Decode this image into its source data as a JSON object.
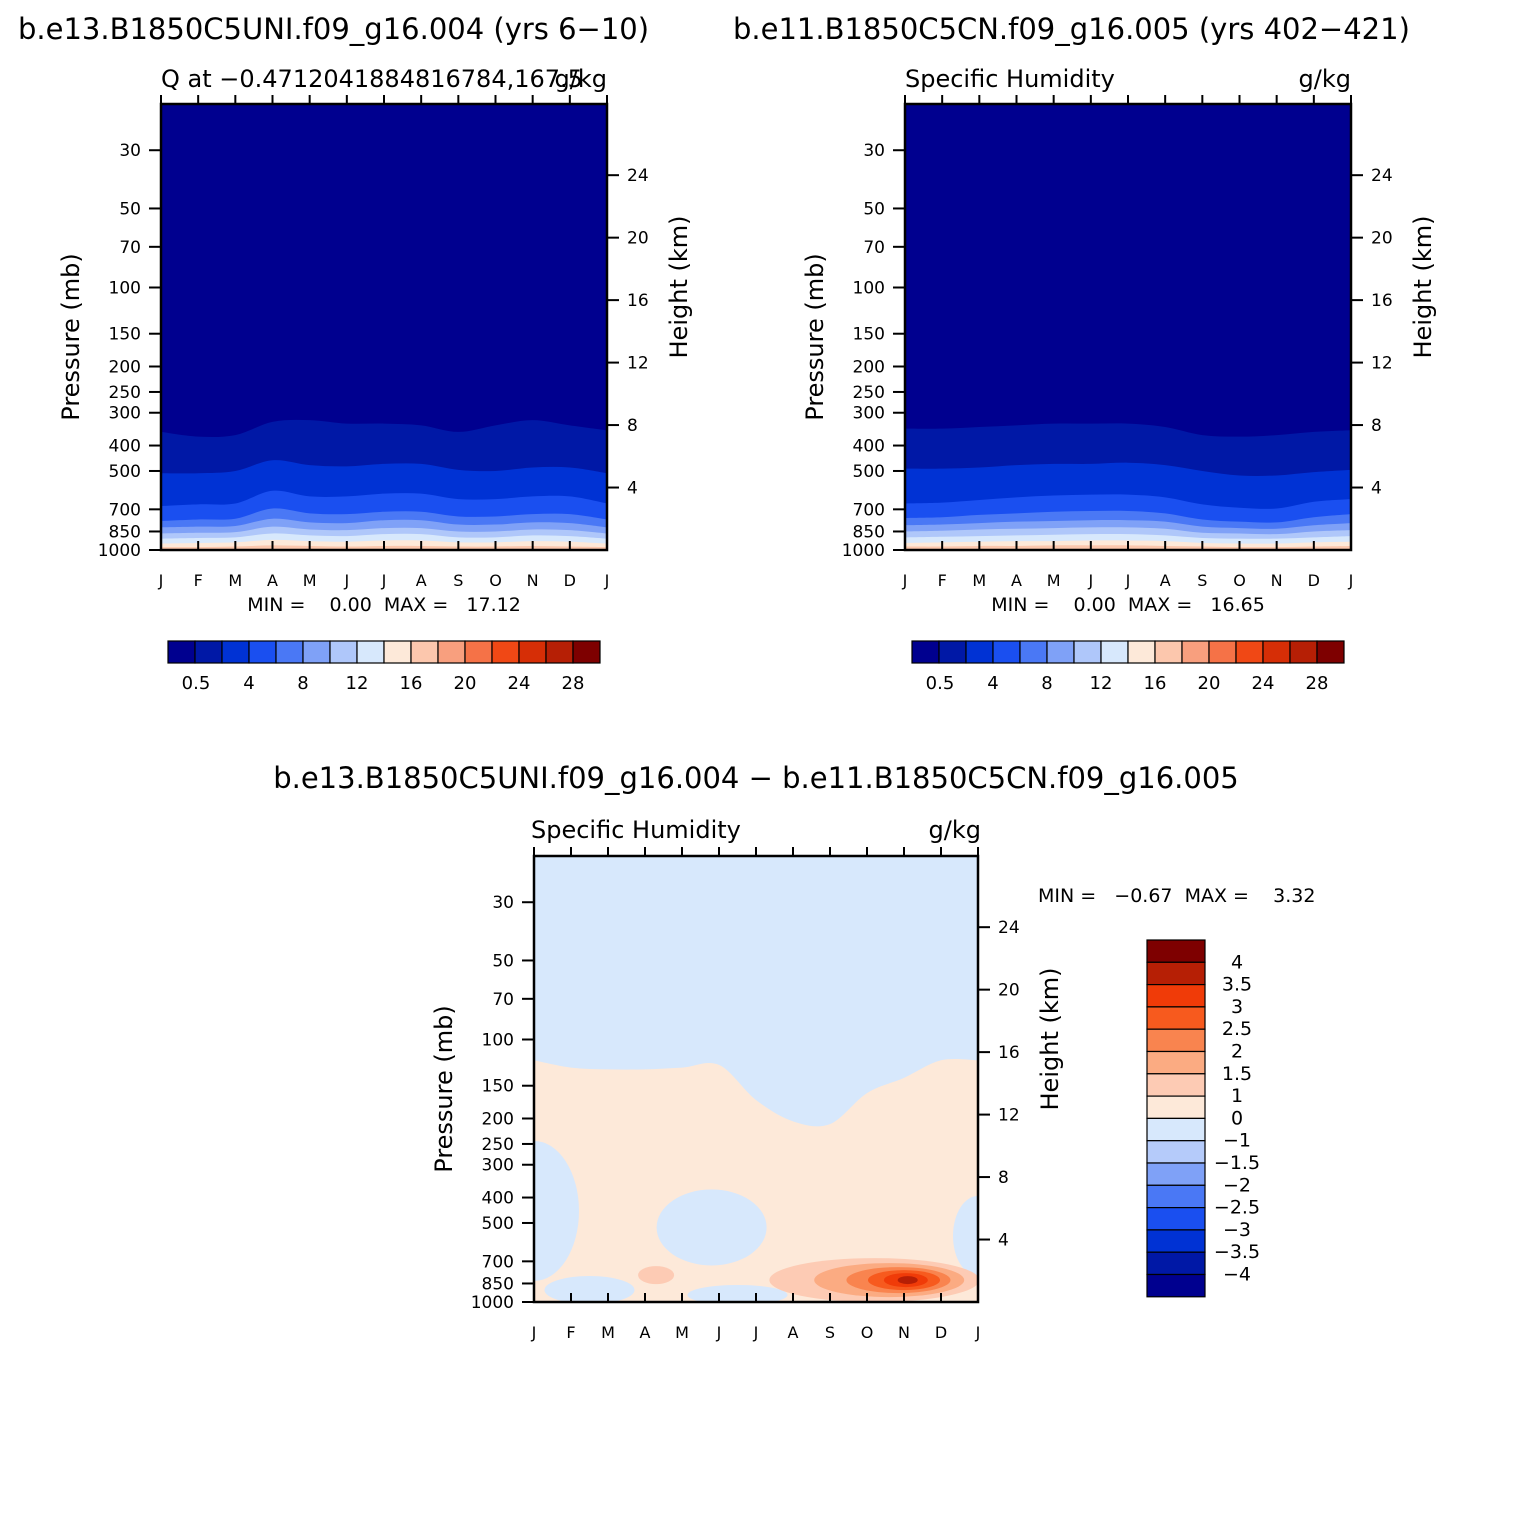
{
  "panels": [
    {
      "id": "p1",
      "run_title": "b.e13.B1850C5UNI.f09_g16.004 (yrs 6−10)",
      "left_title": "Q at −0.4712041884816784,167.5",
      "right_title": "g/kg",
      "min_max_text": "MIN =    0.00  MAX =   17.12",
      "colorbar": "abs"
    },
    {
      "id": "p2",
      "run_title": "b.e11.B1850C5CN.f09_g16.005 (yrs 402−421)",
      "left_title": "Specific Humidity",
      "right_title": "g/kg",
      "min_max_text": "MIN =    0.00  MAX =   16.65",
      "colorbar": "abs"
    },
    {
      "id": "p3",
      "run_title": "b.e13.B1850C5UNI.f09_g16.004 − b.e11.B1850C5CN.f09_g16.005",
      "left_title": "Specific Humidity",
      "right_title": "g/kg",
      "min_max_text": "MIN =   −0.67  MAX =    3.32",
      "colorbar": "diff"
    }
  ],
  "axes": {
    "ylabel": "Pressure (mb)",
    "y2label": "Height (km)",
    "month_ticks": [
      "J",
      "F",
      "M",
      "A",
      "M",
      "J",
      "J",
      "A",
      "S",
      "O",
      "N",
      "D",
      "J"
    ],
    "pressure_ticks": [
      "30",
      "50",
      "70",
      "100",
      "150",
      "200",
      "250",
      "300",
      "400",
      "500",
      "700",
      "850",
      "1000"
    ],
    "height_ticks": [
      "24",
      "20",
      "16",
      "12",
      "8",
      "4"
    ]
  },
  "colorbars": {
    "abs": {
      "colors": [
        "#00008f",
        "#0018a6",
        "#0032d4",
        "#1a4ff0",
        "#4a78f5",
        "#7fa1f7",
        "#afc7fa",
        "#d7e8fc",
        "#fde9d9",
        "#fcc7ad",
        "#f89f7e",
        "#f57247",
        "#f04815",
        "#d62e06",
        "#b61f05",
        "#7e0000"
      ],
      "labels": [
        "0.5",
        "4",
        "8",
        "12",
        "16",
        "20",
        "24",
        "28"
      ]
    },
    "diff": {
      "colors_top_to_bottom": [
        "#7e0000",
        "#b61f05",
        "#f03b08",
        "#f75a1e",
        "#f9844f",
        "#fbab82",
        "#fdcbb4",
        "#fde9d9",
        "#d7e8fc",
        "#b5cbfa",
        "#7fa1f7",
        "#4a78f5",
        "#1a4ff0",
        "#0032d4",
        "#0018a6",
        "#00008f"
      ],
      "labels": [
        "4",
        "3.5",
        "3",
        "2.5",
        "2",
        "1.5",
        "1",
        "0",
        "−1",
        "−1.5",
        "−2",
        "−2.5",
        "−3",
        "−3.5",
        "−4"
      ]
    }
  },
  "chart_data": [
    {
      "type": "heatmap",
      "title": "Q at −0.4712041884816784,167.5",
      "units": "g/kg",
      "xlabel": "",
      "ylabel": "Pressure (mb)",
      "y2label": "Height (km)",
      "ylim": [
        1000,
        20
      ],
      "y_scale": "log",
      "x": [
        "J",
        "F",
        "M",
        "A",
        "M",
        "J",
        "J",
        "A",
        "S",
        "O",
        "N",
        "D",
        "J"
      ],
      "min": 0.0,
      "max": 17.12,
      "levels": [
        0.5,
        2,
        4,
        6,
        8,
        10,
        12,
        14,
        16
      ],
      "contour_pressure_mb": [
        [
          355,
          370,
          365,
          325,
          320,
          330,
          330,
          335,
          355,
          335,
          320,
          335,
          350
        ],
        [
          510,
          510,
          500,
          455,
          475,
          480,
          470,
          470,
          495,
          500,
          485,
          485,
          510
        ],
        [
          680,
          670,
          665,
          595,
          625,
          625,
          610,
          610,
          640,
          640,
          625,
          625,
          665
        ],
        [
          775,
          765,
          760,
          695,
          725,
          730,
          715,
          715,
          745,
          745,
          730,
          730,
          765
        ],
        [
          820,
          815,
          810,
          760,
          785,
          790,
          770,
          770,
          800,
          800,
          785,
          790,
          820
        ],
        [
          865,
          860,
          855,
          815,
          835,
          840,
          825,
          825,
          850,
          850,
          835,
          840,
          865
        ],
        [
          905,
          900,
          895,
          865,
          880,
          885,
          870,
          870,
          895,
          895,
          880,
          885,
          905
        ],
        [
          945,
          940,
          935,
          915,
          925,
          930,
          920,
          920,
          935,
          935,
          925,
          930,
          945
        ],
        [
          975,
          975,
          970,
          960,
          965,
          970,
          965,
          965,
          970,
          970,
          965,
          970,
          975
        ]
      ]
    },
    {
      "type": "heatmap",
      "title": "Specific Humidity",
      "units": "g/kg",
      "xlabel": "",
      "ylabel": "Pressure (mb)",
      "y2label": "Height (km)",
      "ylim": [
        1000,
        20
      ],
      "y_scale": "log",
      "x": [
        "J",
        "F",
        "M",
        "A",
        "M",
        "J",
        "J",
        "A",
        "S",
        "O",
        "N",
        "D",
        "J"
      ],
      "min": 0.0,
      "max": 16.65,
      "levels": [
        0.5,
        2,
        4,
        6,
        8,
        10,
        12,
        14,
        16
      ],
      "contour_pressure_mb": [
        [
          345,
          345,
          340,
          335,
          330,
          330,
          330,
          340,
          365,
          370,
          365,
          355,
          350
        ],
        [
          490,
          490,
          485,
          475,
          470,
          470,
          465,
          475,
          500,
          520,
          520,
          505,
          495
        ],
        [
          665,
          660,
          645,
          630,
          620,
          615,
          615,
          630,
          670,
          690,
          695,
          655,
          640
        ],
        [
          755,
          750,
          735,
          725,
          715,
          710,
          710,
          725,
          765,
          780,
          785,
          750,
          730
        ],
        [
          805,
          800,
          790,
          780,
          775,
          770,
          770,
          780,
          815,
          825,
          830,
          805,
          790
        ],
        [
          850,
          845,
          835,
          830,
          825,
          820,
          820,
          830,
          860,
          865,
          870,
          850,
          840
        ],
        [
          895,
          890,
          885,
          880,
          875,
          870,
          870,
          880,
          900,
          905,
          905,
          895,
          885
        ],
        [
          940,
          935,
          930,
          925,
          925,
          920,
          920,
          925,
          940,
          945,
          945,
          935,
          930
        ],
        [
          970,
          970,
          965,
          965,
          960,
          960,
          960,
          965,
          970,
          975,
          975,
          970,
          965
        ]
      ]
    },
    {
      "type": "heatmap",
      "title": "Specific Humidity",
      "units": "g/kg",
      "xlabel": "",
      "ylabel": "Pressure (mb)",
      "y2label": "Height (km)",
      "ylim": [
        1000,
        20
      ],
      "y_scale": "log",
      "x": [
        "J",
        "F",
        "M",
        "A",
        "M",
        "J",
        "J",
        "A",
        "S",
        "O",
        "N",
        "D",
        "J"
      ],
      "min": -0.67,
      "max": 3.32,
      "levels": [
        -1,
        0,
        1,
        1.5,
        2,
        2.5,
        3
      ],
      "background_level": "0 to 1",
      "positive_region_upper_boundary_mb": [
        120,
        128,
        130,
        130,
        128,
        125,
        170,
        205,
        210,
        160,
        140,
        120,
        120
      ],
      "positive_features": [
        {
          "x": 8.9,
          "p": 820,
          "value": 0.75
        },
        {
          "x": 9.7,
          "p": 815,
          "value": 1.2
        },
        {
          "x": 9.8,
          "p": 820,
          "value": 1.6
        },
        {
          "x": 9.9,
          "p": 820,
          "value": 2.0
        },
        {
          "x": 10.0,
          "p": 820,
          "value": 2.5
        },
        {
          "x": 10.05,
          "p": 825,
          "value": 3.32
        },
        {
          "x": 3.3,
          "p": 790,
          "value": 1.2
        }
      ],
      "negative_features": [
        {
          "x": 0.0,
          "p": 450,
          "value": -0.3
        },
        {
          "x": 4.8,
          "p": 520,
          "value": -0.3
        },
        {
          "x": 1.5,
          "p": 900,
          "value": -0.2
        },
        {
          "x": 5.5,
          "p": 940,
          "value": -0.2
        },
        {
          "x": 12.0,
          "p": 560,
          "value": -0.2
        },
        {
          "x": 7.2,
          "p": 200,
          "value": -0.4
        }
      ]
    }
  ]
}
